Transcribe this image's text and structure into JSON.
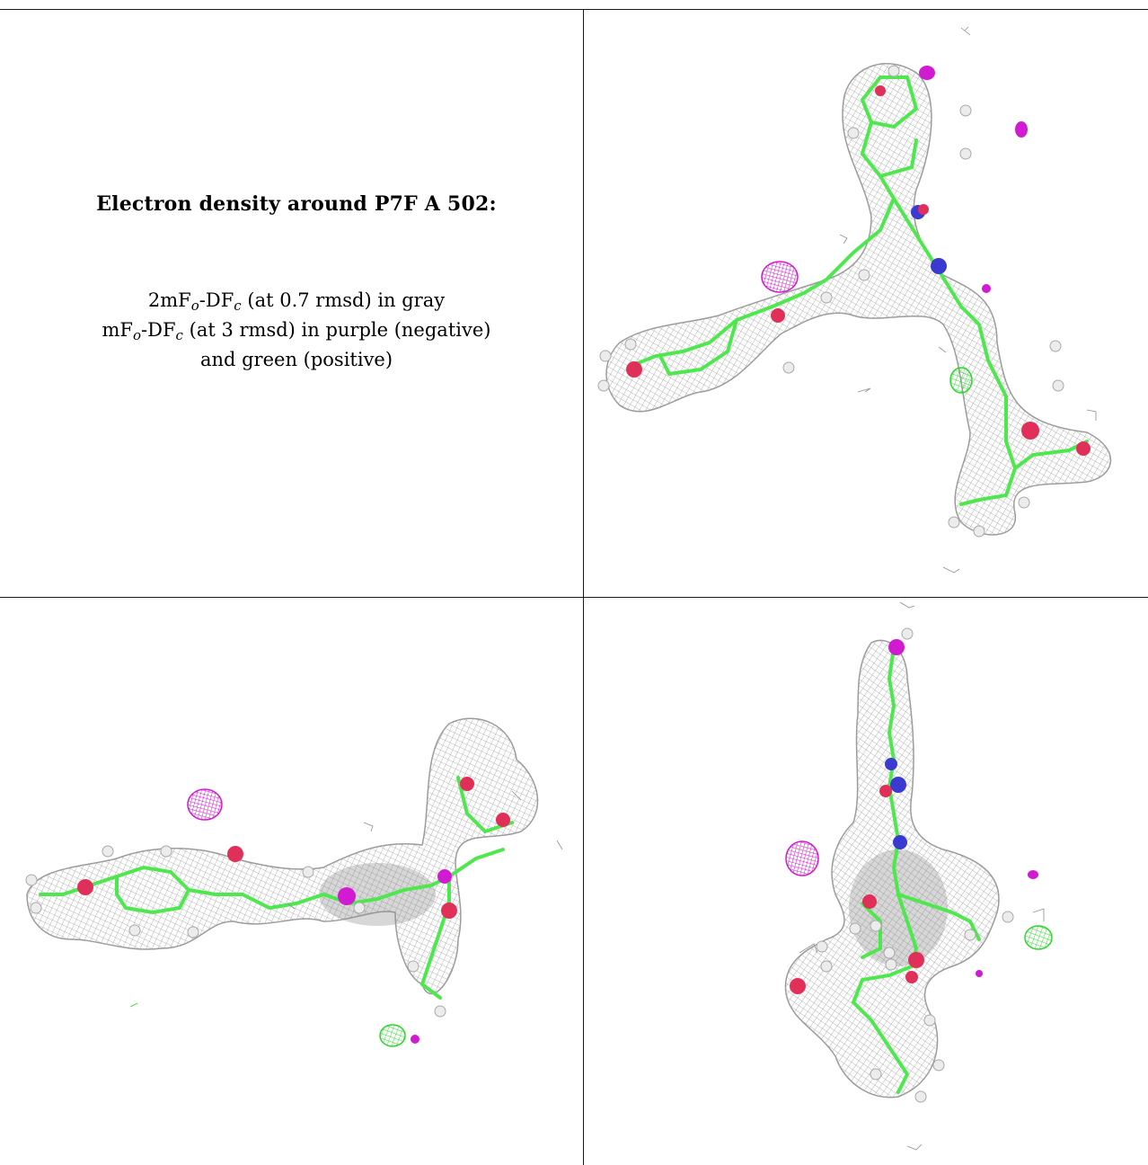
{
  "caption": {
    "title": "Electron density around P7F A 502:",
    "line1": {
      "prefix": "2mF",
      "sub1": "o",
      "mid": "-DF",
      "sub2": "c",
      "suffix": " (at 0.7 rmsd) in gray"
    },
    "line2": {
      "prefix": "mF",
      "sub1": "o",
      "mid": "-DF",
      "sub2": "c",
      "suffix": " (at 3 rmsd) in purple (negative)"
    },
    "line3": "and green (positive)"
  },
  "colors": {
    "mesh_gray": "#9c9c9c",
    "carbon_green": "#4ee84e",
    "oxygen_red": "#e0305a",
    "nitrogen_blue": "#3a3ad0",
    "negative_purple": "#d21ad2",
    "positive_green": "#2ad82a",
    "hydrogen_white": "#e6e6e6"
  },
  "panels": [
    {
      "name": "view-top-right"
    },
    {
      "name": "view-bottom-left"
    },
    {
      "name": "view-bottom-right"
    }
  ]
}
